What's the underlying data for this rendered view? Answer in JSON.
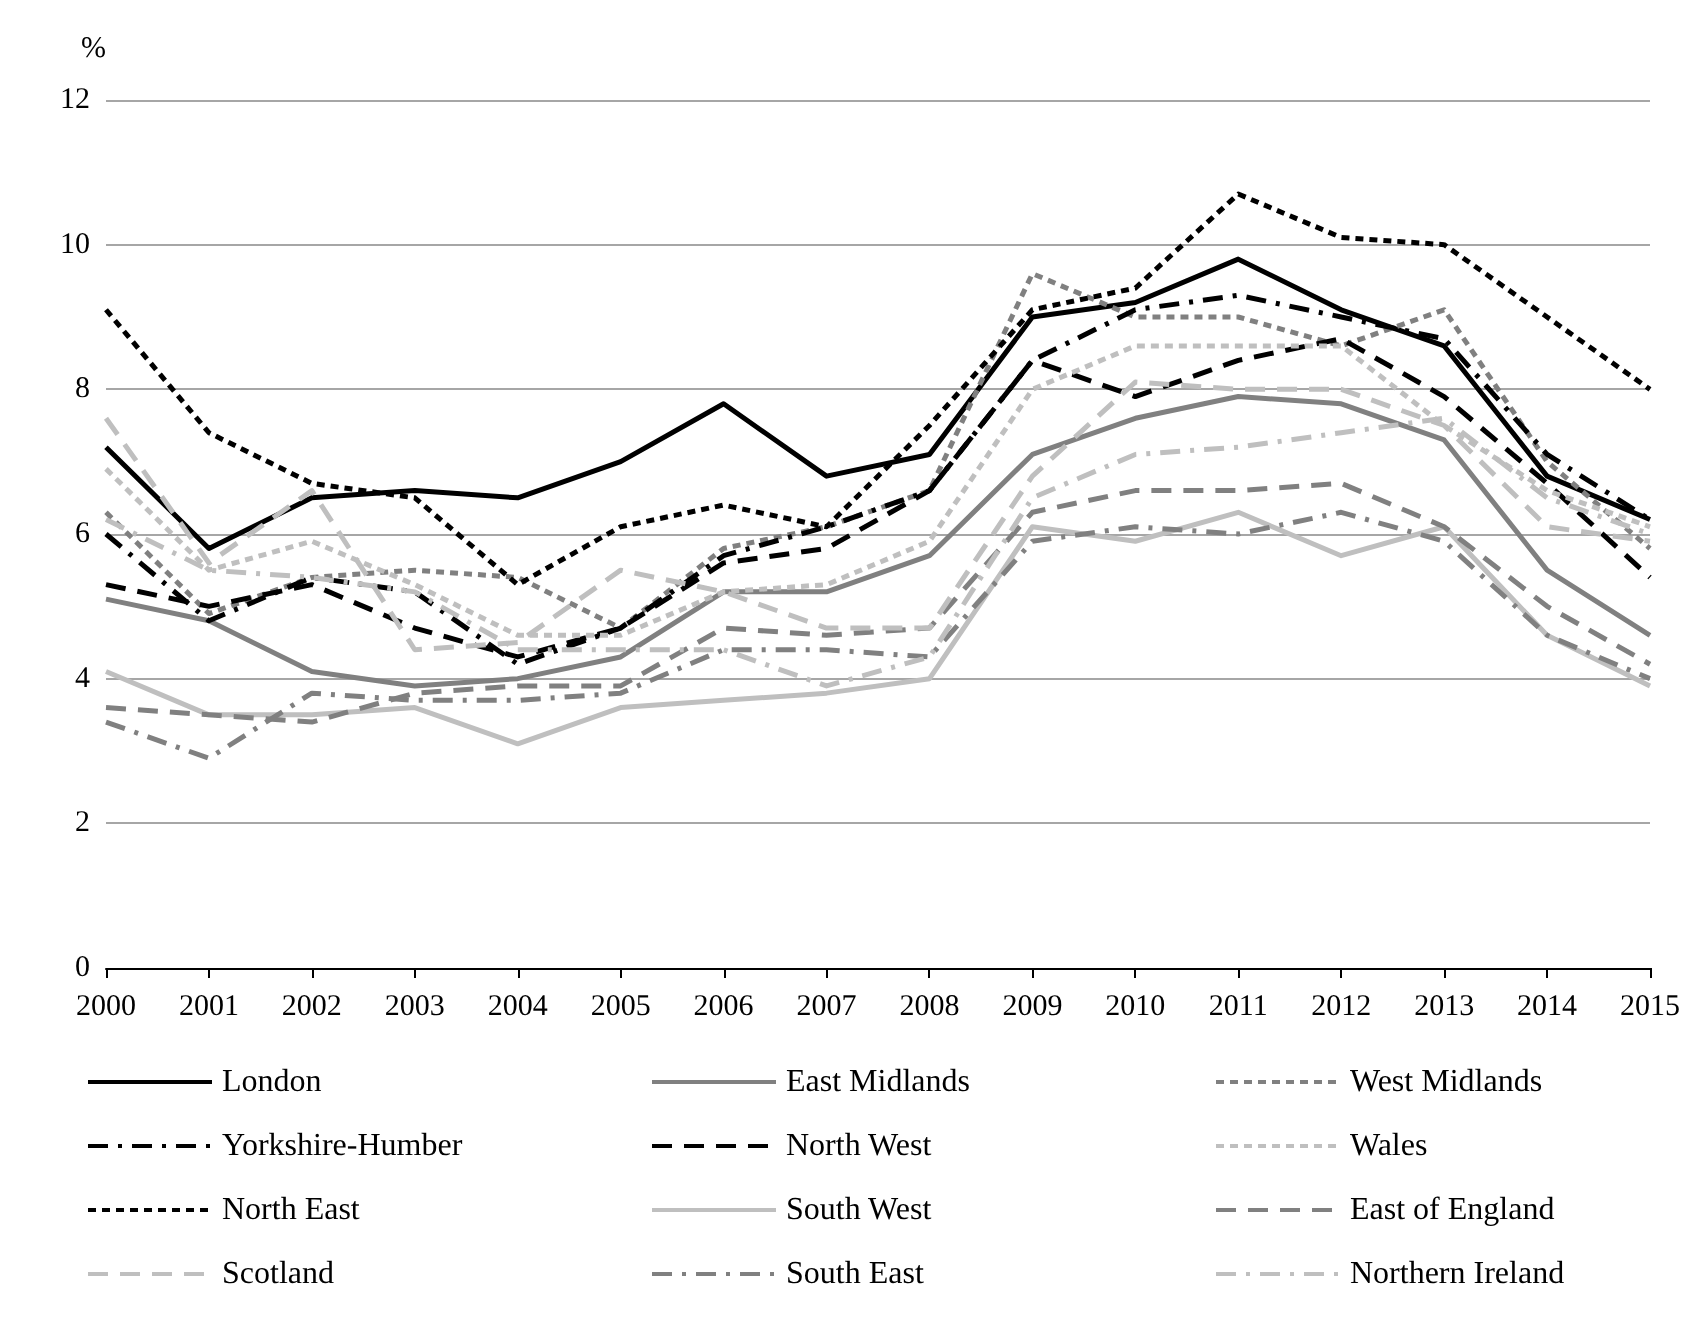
{
  "chart_data": {
    "type": "line",
    "ylabel": "%",
    "categories": [
      "2000",
      "2001",
      "2002",
      "2003",
      "2004",
      "2005",
      "2006",
      "2007",
      "2008",
      "2009",
      "2010",
      "2011",
      "2012",
      "2013",
      "2014",
      "2015"
    ],
    "ylim": [
      0,
      12
    ],
    "yticks": [
      0,
      2,
      4,
      6,
      8,
      10,
      12
    ],
    "grid": "y",
    "legend": "bottom",
    "marker": "none",
    "series": [
      {
        "name": "London",
        "color": "#000000",
        "line_style": "solid",
        "values": [
          7.2,
          5.8,
          6.5,
          6.6,
          6.5,
          7.0,
          7.8,
          6.8,
          7.1,
          9.0,
          9.2,
          9.8,
          9.1,
          8.6,
          6.8,
          6.2
        ]
      },
      {
        "name": "East Midlands",
        "color": "#808080",
        "line_style": "solid",
        "values": [
          5.1,
          4.8,
          4.1,
          3.9,
          4.0,
          4.3,
          5.2,
          5.2,
          5.7,
          7.1,
          7.6,
          7.9,
          7.8,
          7.3,
          5.5,
          4.6
        ]
      },
      {
        "name": "West Midlands",
        "color": "#808080",
        "line_style": "dotted",
        "values": [
          6.3,
          4.9,
          5.4,
          5.5,
          5.4,
          4.7,
          5.8,
          6.1,
          6.6,
          9.6,
          9.0,
          9.0,
          8.6,
          9.1,
          7.0,
          5.8
        ]
      },
      {
        "name": "Yorkshire-Humber",
        "color": "#000000",
        "line_style": "dashdot",
        "values": [
          6.0,
          4.8,
          5.4,
          5.2,
          4.2,
          4.7,
          5.7,
          6.1,
          6.6,
          8.4,
          9.1,
          9.3,
          9.0,
          8.7,
          7.1,
          6.2
        ]
      },
      {
        "name": "North West",
        "color": "#000000",
        "line_style": "dashed",
        "values": [
          5.3,
          5.0,
          5.3,
          4.7,
          4.3,
          4.7,
          5.6,
          5.8,
          6.6,
          8.4,
          7.9,
          8.4,
          8.7,
          7.9,
          6.7,
          5.4
        ]
      },
      {
        "name": "Wales",
        "color": "#bfbfbf",
        "line_style": "dotted",
        "values": [
          6.9,
          5.5,
          5.9,
          5.3,
          4.6,
          4.6,
          5.2,
          5.3,
          5.9,
          8.0,
          8.6,
          8.6,
          8.6,
          7.5,
          6.6,
          6.1
        ]
      },
      {
        "name": "North East",
        "color": "#000000",
        "line_style": "dotted",
        "values": [
          9.1,
          7.4,
          6.7,
          6.5,
          5.3,
          6.1,
          6.4,
          6.1,
          7.5,
          9.1,
          9.4,
          10.7,
          10.1,
          10.0,
          9.0,
          8.0
        ]
      },
      {
        "name": "South West",
        "color": "#bfbfbf",
        "line_style": "solid",
        "values": [
          4.1,
          3.5,
          3.5,
          3.6,
          3.1,
          3.6,
          3.7,
          3.8,
          4.0,
          6.1,
          5.9,
          6.3,
          5.7,
          6.1,
          4.6,
          3.9
        ]
      },
      {
        "name": "East of England",
        "color": "#808080",
        "line_style": "dashed",
        "values": [
          3.6,
          3.5,
          3.4,
          3.8,
          3.9,
          3.9,
          4.7,
          4.6,
          4.7,
          6.3,
          6.6,
          6.6,
          6.7,
          6.1,
          5.0,
          4.2
        ]
      },
      {
        "name": "Scotland",
        "color": "#bfbfbf",
        "line_style": "dashed",
        "values": [
          7.6,
          5.6,
          6.6,
          4.4,
          4.5,
          5.5,
          5.2,
          4.7,
          4.7,
          6.8,
          8.1,
          8.0,
          8.0,
          7.5,
          6.1,
          5.9
        ]
      },
      {
        "name": "South East",
        "color": "#808080",
        "line_style": "dashdot",
        "values": [
          3.4,
          2.9,
          3.8,
          3.7,
          3.7,
          3.8,
          4.4,
          4.4,
          4.3,
          5.9,
          6.1,
          6.0,
          6.3,
          5.9,
          4.6,
          4.0
        ]
      },
      {
        "name": "Northern Ireland",
        "color": "#bfbfbf",
        "line_style": "dashdot",
        "values": [
          6.2,
          5.5,
          5.4,
          5.2,
          4.4,
          4.4,
          4.4,
          3.9,
          4.3,
          6.5,
          7.1,
          7.2,
          7.4,
          7.6,
          6.5,
          6.0
        ]
      }
    ]
  }
}
